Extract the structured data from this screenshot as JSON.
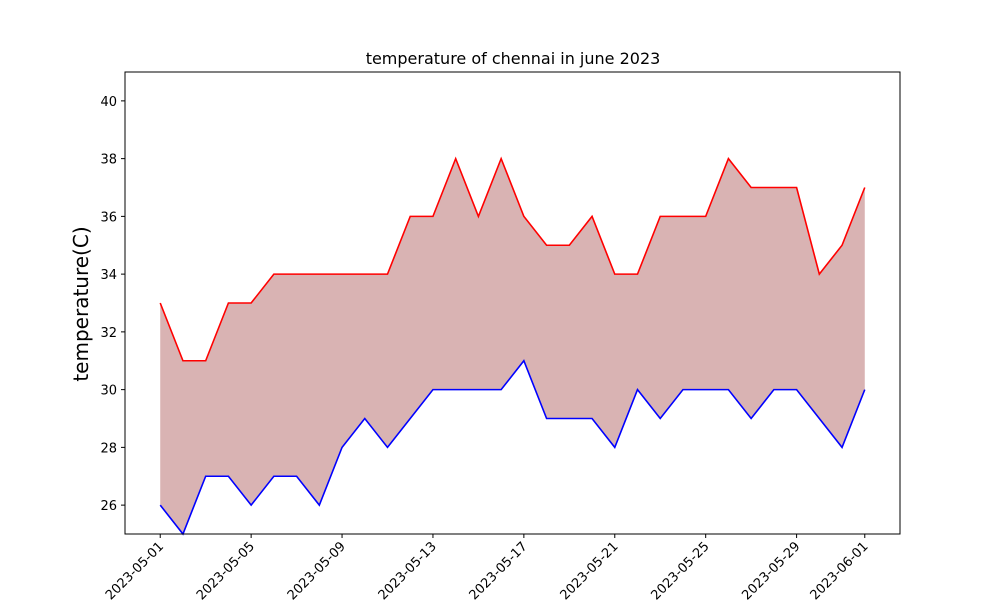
{
  "chart_data": {
    "type": "area",
    "title": "temperature of chennai in june 2023",
    "xlabel": "",
    "ylabel": "temperature(C)",
    "x": [
      "2023-05-01",
      "2023-05-02",
      "2023-05-03",
      "2023-05-04",
      "2023-05-05",
      "2023-05-06",
      "2023-05-07",
      "2023-05-08",
      "2023-05-09",
      "2023-05-10",
      "2023-05-11",
      "2023-05-12",
      "2023-05-13",
      "2023-05-14",
      "2023-05-15",
      "2023-05-16",
      "2023-05-17",
      "2023-05-18",
      "2023-05-19",
      "2023-05-20",
      "2023-05-21",
      "2023-05-22",
      "2023-05-23",
      "2023-05-24",
      "2023-05-25",
      "2023-05-26",
      "2023-05-27",
      "2023-05-28",
      "2023-05-29",
      "2023-05-30",
      "2023-05-31",
      "2023-06-01"
    ],
    "series": [
      {
        "values": [
          33,
          31,
          31,
          33,
          33,
          34,
          34,
          34,
          34,
          34,
          34,
          36,
          36,
          38,
          36,
          38,
          36,
          35,
          35,
          36,
          34,
          34,
          36,
          36,
          36,
          38,
          37,
          37,
          37,
          34,
          35,
          37
        ],
        "color": "#ff0000"
      },
      {
        "values": [
          26,
          25,
          27,
          27,
          26,
          27,
          27,
          26,
          28,
          29,
          28,
          29,
          30,
          30,
          30,
          30,
          31,
          29,
          29,
          29,
          28,
          30,
          29,
          30,
          30,
          30,
          29,
          30,
          30,
          29,
          28,
          30
        ],
        "color": "#0000ff"
      }
    ],
    "fill_color": "#d9b3b3",
    "ylim": [
      25,
      41
    ],
    "yticks": [
      26,
      28,
      30,
      32,
      34,
      36,
      38,
      40
    ],
    "xticks": [
      "2023-05-01",
      "2023-05-05",
      "2023-05-09",
      "2023-05-13",
      "2023-05-17",
      "2023-05-21",
      "2023-05-25",
      "2023-05-29",
      "2023-06-01"
    ],
    "grid": false,
    "legend": "none"
  }
}
